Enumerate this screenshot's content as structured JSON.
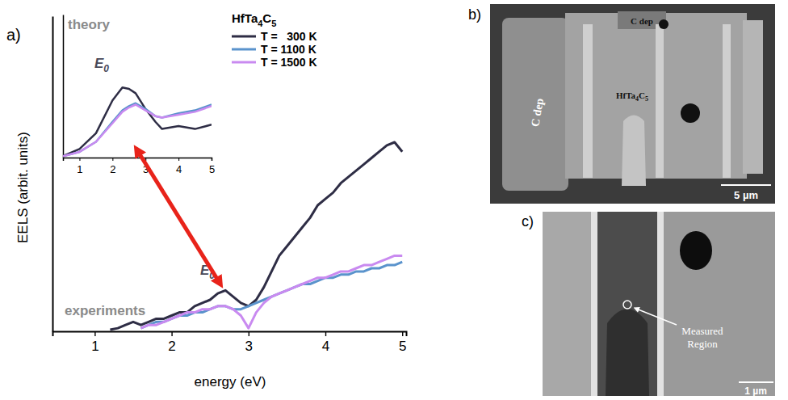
{
  "chart_data": [
    {
      "type": "line",
      "title": "HfTa4C5",
      "x_label": "energy (eV)",
      "y_label": "EELS (arbit. units)",
      "annotations": [
        "a)",
        "experiments",
        "E0"
      ],
      "x": [
        1.2,
        1.3,
        1.4,
        1.5,
        1.6,
        1.7,
        1.8,
        1.9,
        2.0,
        2.1,
        2.2,
        2.3,
        2.4,
        2.5,
        2.6,
        2.7,
        2.8,
        2.9,
        3.0,
        3.1,
        3.2,
        3.3,
        3.4,
        3.5,
        3.6,
        3.7,
        3.8,
        3.9,
        4.0,
        4.1,
        4.2,
        4.3,
        4.4,
        4.5,
        4.6,
        4.7,
        4.8,
        4.9,
        5.0
      ],
      "series": [
        {
          "name": "T =   300 K",
          "color": "#2e2d45",
          "values": [
            0.5,
            1,
            2,
            3,
            2,
            3,
            4,
            4,
            5,
            6,
            6,
            8,
            9,
            10,
            12,
            13,
            11,
            9,
            8,
            10,
            14,
            19,
            24,
            27,
            30,
            33,
            36,
            40,
            42,
            44,
            47,
            49,
            51,
            53,
            55,
            57,
            59,
            60,
            57
          ]
        },
        {
          "name": "T = 1100 K",
          "color": "#5a93cc",
          "values": [
            null,
            null,
            null,
            null,
            1,
            2,
            3,
            3,
            4,
            5,
            5,
            6,
            6,
            7,
            8,
            8,
            7,
            7,
            8,
            9,
            10,
            11,
            12,
            13,
            14,
            15,
            15,
            16,
            17,
            17,
            18,
            18,
            19,
            19,
            20,
            20,
            21,
            21,
            22
          ]
        },
        {
          "name": "T = 1500 K",
          "color": "#c98af0",
          "values": [
            null,
            null,
            null,
            null,
            1,
            2,
            2,
            3,
            4,
            5,
            6,
            6,
            7,
            7,
            8,
            8,
            7,
            5,
            1,
            6,
            9,
            11,
            12,
            13,
            14,
            15,
            16,
            17,
            17,
            18,
            19,
            19,
            20,
            21,
            21,
            22,
            23,
            24,
            24
          ]
        }
      ],
      "xlim": [
        0.45,
        5.05
      ],
      "xticks": [
        1,
        2,
        3,
        4,
        5
      ],
      "ylim": [
        0,
        100
      ],
      "tick_labels": "x",
      "legend": "top"
    },
    {
      "type": "line",
      "annotations": [
        "theory",
        "E0"
      ],
      "x": [
        0.5,
        1.0,
        1.5,
        2.0,
        2.3,
        2.5,
        2.7,
        3.0,
        3.3,
        3.5,
        4.0,
        4.5,
        5.0
      ],
      "series": [
        {
          "color": "#2e2d45",
          "values": [
            1,
            6,
            17,
            40,
            49,
            48,
            45,
            34,
            25,
            20,
            22,
            20,
            23
          ]
        },
        {
          "color": "#5a93cc",
          "values": [
            1,
            4,
            11,
            25,
            33,
            36,
            38,
            34,
            29,
            28,
            31,
            33,
            37
          ]
        },
        {
          "color": "#c98af0",
          "values": [
            1,
            4,
            11,
            24,
            32,
            35,
            37,
            33,
            29,
            28,
            30,
            32,
            36
          ]
        }
      ],
      "xlim": [
        0.5,
        5.0
      ],
      "xticks": [
        1,
        2,
        3,
        4,
        5
      ],
      "ylim": [
        0,
        100
      ],
      "tick_labels": "x"
    }
  ],
  "images": [
    {
      "letter": "b)",
      "labels": [
        "C dep",
        "C dep",
        "HfTa4C5"
      ],
      "scale_bar": "5 µm"
    },
    {
      "letter": "c)",
      "labels": [
        "Measured Region"
      ],
      "scale_bar": "1 µm"
    }
  ]
}
